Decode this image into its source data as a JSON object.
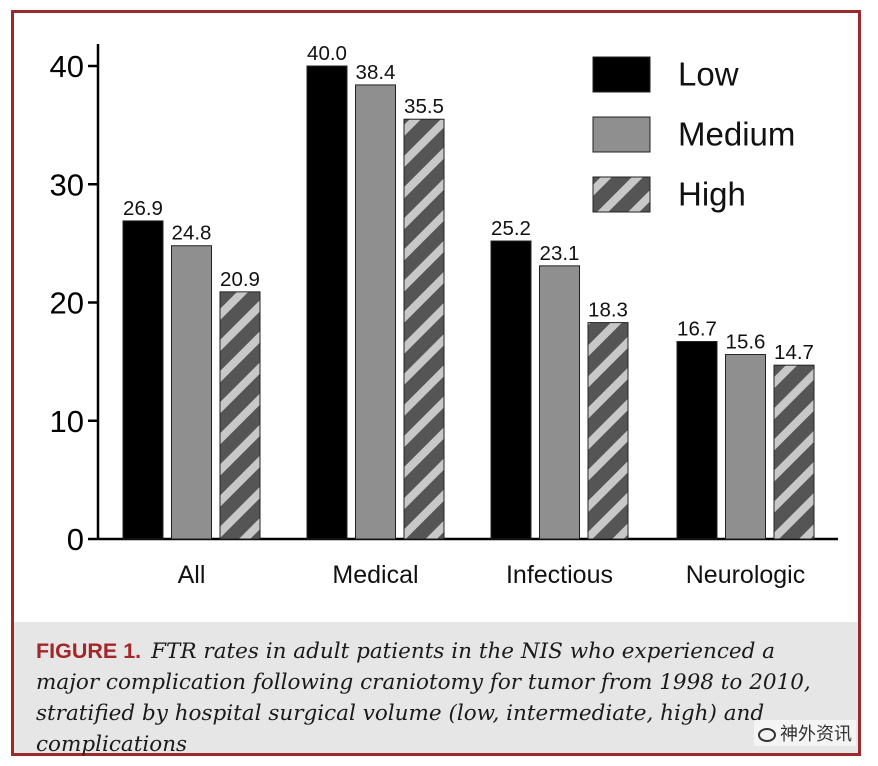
{
  "chart_data": {
    "type": "bar",
    "title": "",
    "xlabel": "",
    "ylabel": "",
    "categories": [
      "All",
      "Medical",
      "Infectious",
      "Neurologic"
    ],
    "series": [
      {
        "name": "Low",
        "values": [
          26.9,
          40.0,
          25.2,
          16.7
        ],
        "value_labels": [
          "26.9",
          "40.0",
          "25.2",
          "16.7"
        ],
        "color": "#000000",
        "pattern": "solid"
      },
      {
        "name": "Medium",
        "values": [
          24.8,
          38.4,
          23.1,
          15.6
        ],
        "value_labels": [
          "24.8",
          "38.4",
          "23.1",
          "15.6"
        ],
        "color": "#8f8f8f",
        "pattern": "solid"
      },
      {
        "name": "High",
        "values": [
          20.9,
          35.5,
          18.3,
          14.7
        ],
        "value_labels": [
          "20.9",
          "35.5",
          "18.3",
          "14.7"
        ],
        "color": "#555555",
        "pattern": "diagonal-stripes"
      }
    ],
    "ylim": [
      0,
      40
    ],
    "yticks": [
      0,
      10,
      20,
      30,
      40
    ],
    "ytick_labels": [
      "0",
      "10",
      "20",
      "30",
      "40"
    ],
    "grid": false,
    "legend": "top-right",
    "data_labels": true
  },
  "caption": {
    "label": "FIGURE 1.",
    "text": "FTR rates in adult patients in the NIS who experienced a major complication following craniotomy for tumor from 1998 to 2010, stratified by hospital surgical volume (low, intermediate, high) and complications"
  },
  "watermark": {
    "text": "神外资讯"
  },
  "colors": {
    "border": "#9c2a2c",
    "caption_label": "#a3262a",
    "caption_bg": "#e6e6e6"
  }
}
